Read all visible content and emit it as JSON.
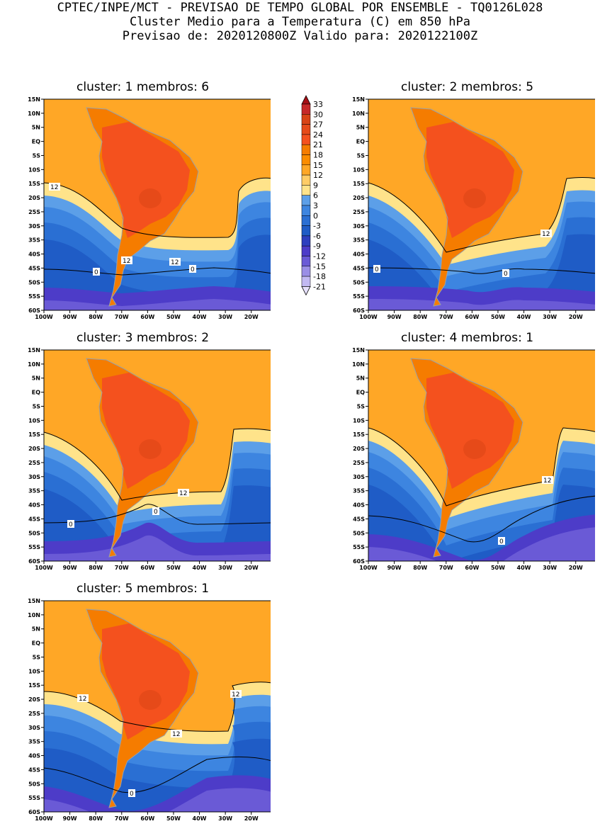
{
  "header": {
    "line1": "CPTEC/INPE/MCT - PREVISAO DE TEMPO GLOBAL POR ENSEMBLE - TQ0126L028",
    "line2": "Cluster Medio para a Temperatura (C) em 850 hPa",
    "line3": "Previsao de: 2020120800Z   Valido para: 2020122100Z"
  },
  "axes": {
    "lat_labels": [
      "15N",
      "10N",
      "5N",
      "EQ",
      "5S",
      "10S",
      "15S",
      "20S",
      "25S",
      "30S",
      "35S",
      "40S",
      "45S",
      "50S",
      "55S",
      "60S"
    ],
    "lon_labels": [
      "100W",
      "90W",
      "80W",
      "70W",
      "60W",
      "50W",
      "40W",
      "30W",
      "20W"
    ],
    "lat_range": [
      -60,
      15
    ],
    "lon_range": [
      -100,
      -12
    ]
  },
  "colorbar": {
    "labels": [
      "33",
      "30",
      "27",
      "24",
      "21",
      "18",
      "15",
      "12",
      "9",
      "6",
      "3",
      "0",
      "-3",
      "-6",
      "-9",
      "-12",
      "-15",
      "-18",
      "-21"
    ],
    "colors": [
      "#a50f15",
      "#c62828",
      "#d84315",
      "#e64a19",
      "#f4511e",
      "#f57c00",
      "#fb8c00",
      "#ffa726",
      "#ffcc66",
      "#ffe38a",
      "#5c9fe8",
      "#3d85e0",
      "#2a6fd3",
      "#1f5cc6",
      "#2e3fbf",
      "#4d3cc8",
      "#6a5ad6",
      "#9a8ee6",
      "#c2b9f2",
      "#e6e0fb"
    ]
  },
  "panels": [
    {
      "title": "cluster: 1   membros: 6",
      "labels": [
        "12",
        "12",
        "12",
        "0",
        "0"
      ]
    },
    {
      "title": "cluster: 2   membros: 5",
      "labels": [
        "12",
        "0",
        "0"
      ]
    },
    {
      "title": "cluster: 3   membros: 2",
      "labels": [
        "12",
        "0",
        "0"
      ]
    },
    {
      "title": "cluster: 4   membros: 1",
      "labels": [
        "12",
        "0"
      ]
    },
    {
      "title": "cluster: 5   membros: 1",
      "labels": [
        "12",
        "12",
        "12",
        "0"
      ]
    }
  ]
}
